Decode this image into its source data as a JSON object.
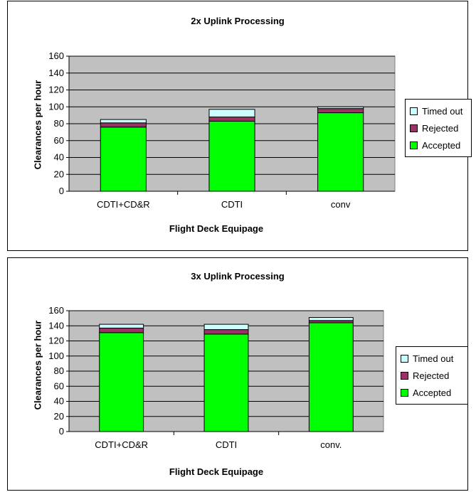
{
  "colors": {
    "plot_background": "#c0c0c0",
    "accepted": "#00ff00",
    "rejected": "#993366",
    "timed_out": "#ccffff",
    "gridline": "#000000"
  },
  "legend": [
    "Timed out",
    "Rejected",
    "Accepted"
  ],
  "chart_data": [
    {
      "type": "bar",
      "stacked": true,
      "title": "2x Uplink Processing",
      "xlabel": "Flight Deck Equipage",
      "ylabel": "Clearances per hour",
      "categories": [
        "CDTI+CD&R",
        "CDTI",
        "conv"
      ],
      "ylim": [
        0,
        160
      ],
      "yticks": [
        0,
        20,
        40,
        60,
        80,
        100,
        120,
        140,
        160
      ],
      "grid": true,
      "legend_position": "right",
      "series": [
        {
          "name": "Accepted",
          "values": [
            76,
            83,
            93
          ]
        },
        {
          "name": "Rejected",
          "values": [
            5,
            5,
            5
          ]
        },
        {
          "name": "Timed out",
          "values": [
            4,
            9,
            2
          ]
        }
      ]
    },
    {
      "type": "bar",
      "stacked": true,
      "title": "3x Uplink Processing",
      "xlabel": "Flight Deck Equipage",
      "ylabel": "Clearances per hour",
      "categories": [
        "CDTI+CD&R",
        "CDTI",
        "conv."
      ],
      "ylim": [
        0,
        160
      ],
      "yticks": [
        0,
        20,
        40,
        60,
        80,
        100,
        120,
        140,
        160
      ],
      "grid": true,
      "legend_position": "right",
      "series": [
        {
          "name": "Accepted",
          "values": [
            131,
            129,
            144
          ]
        },
        {
          "name": "Rejected",
          "values": [
            6,
            6,
            3
          ]
        },
        {
          "name": "Timed out",
          "values": [
            5,
            7,
            4
          ]
        }
      ]
    }
  ]
}
